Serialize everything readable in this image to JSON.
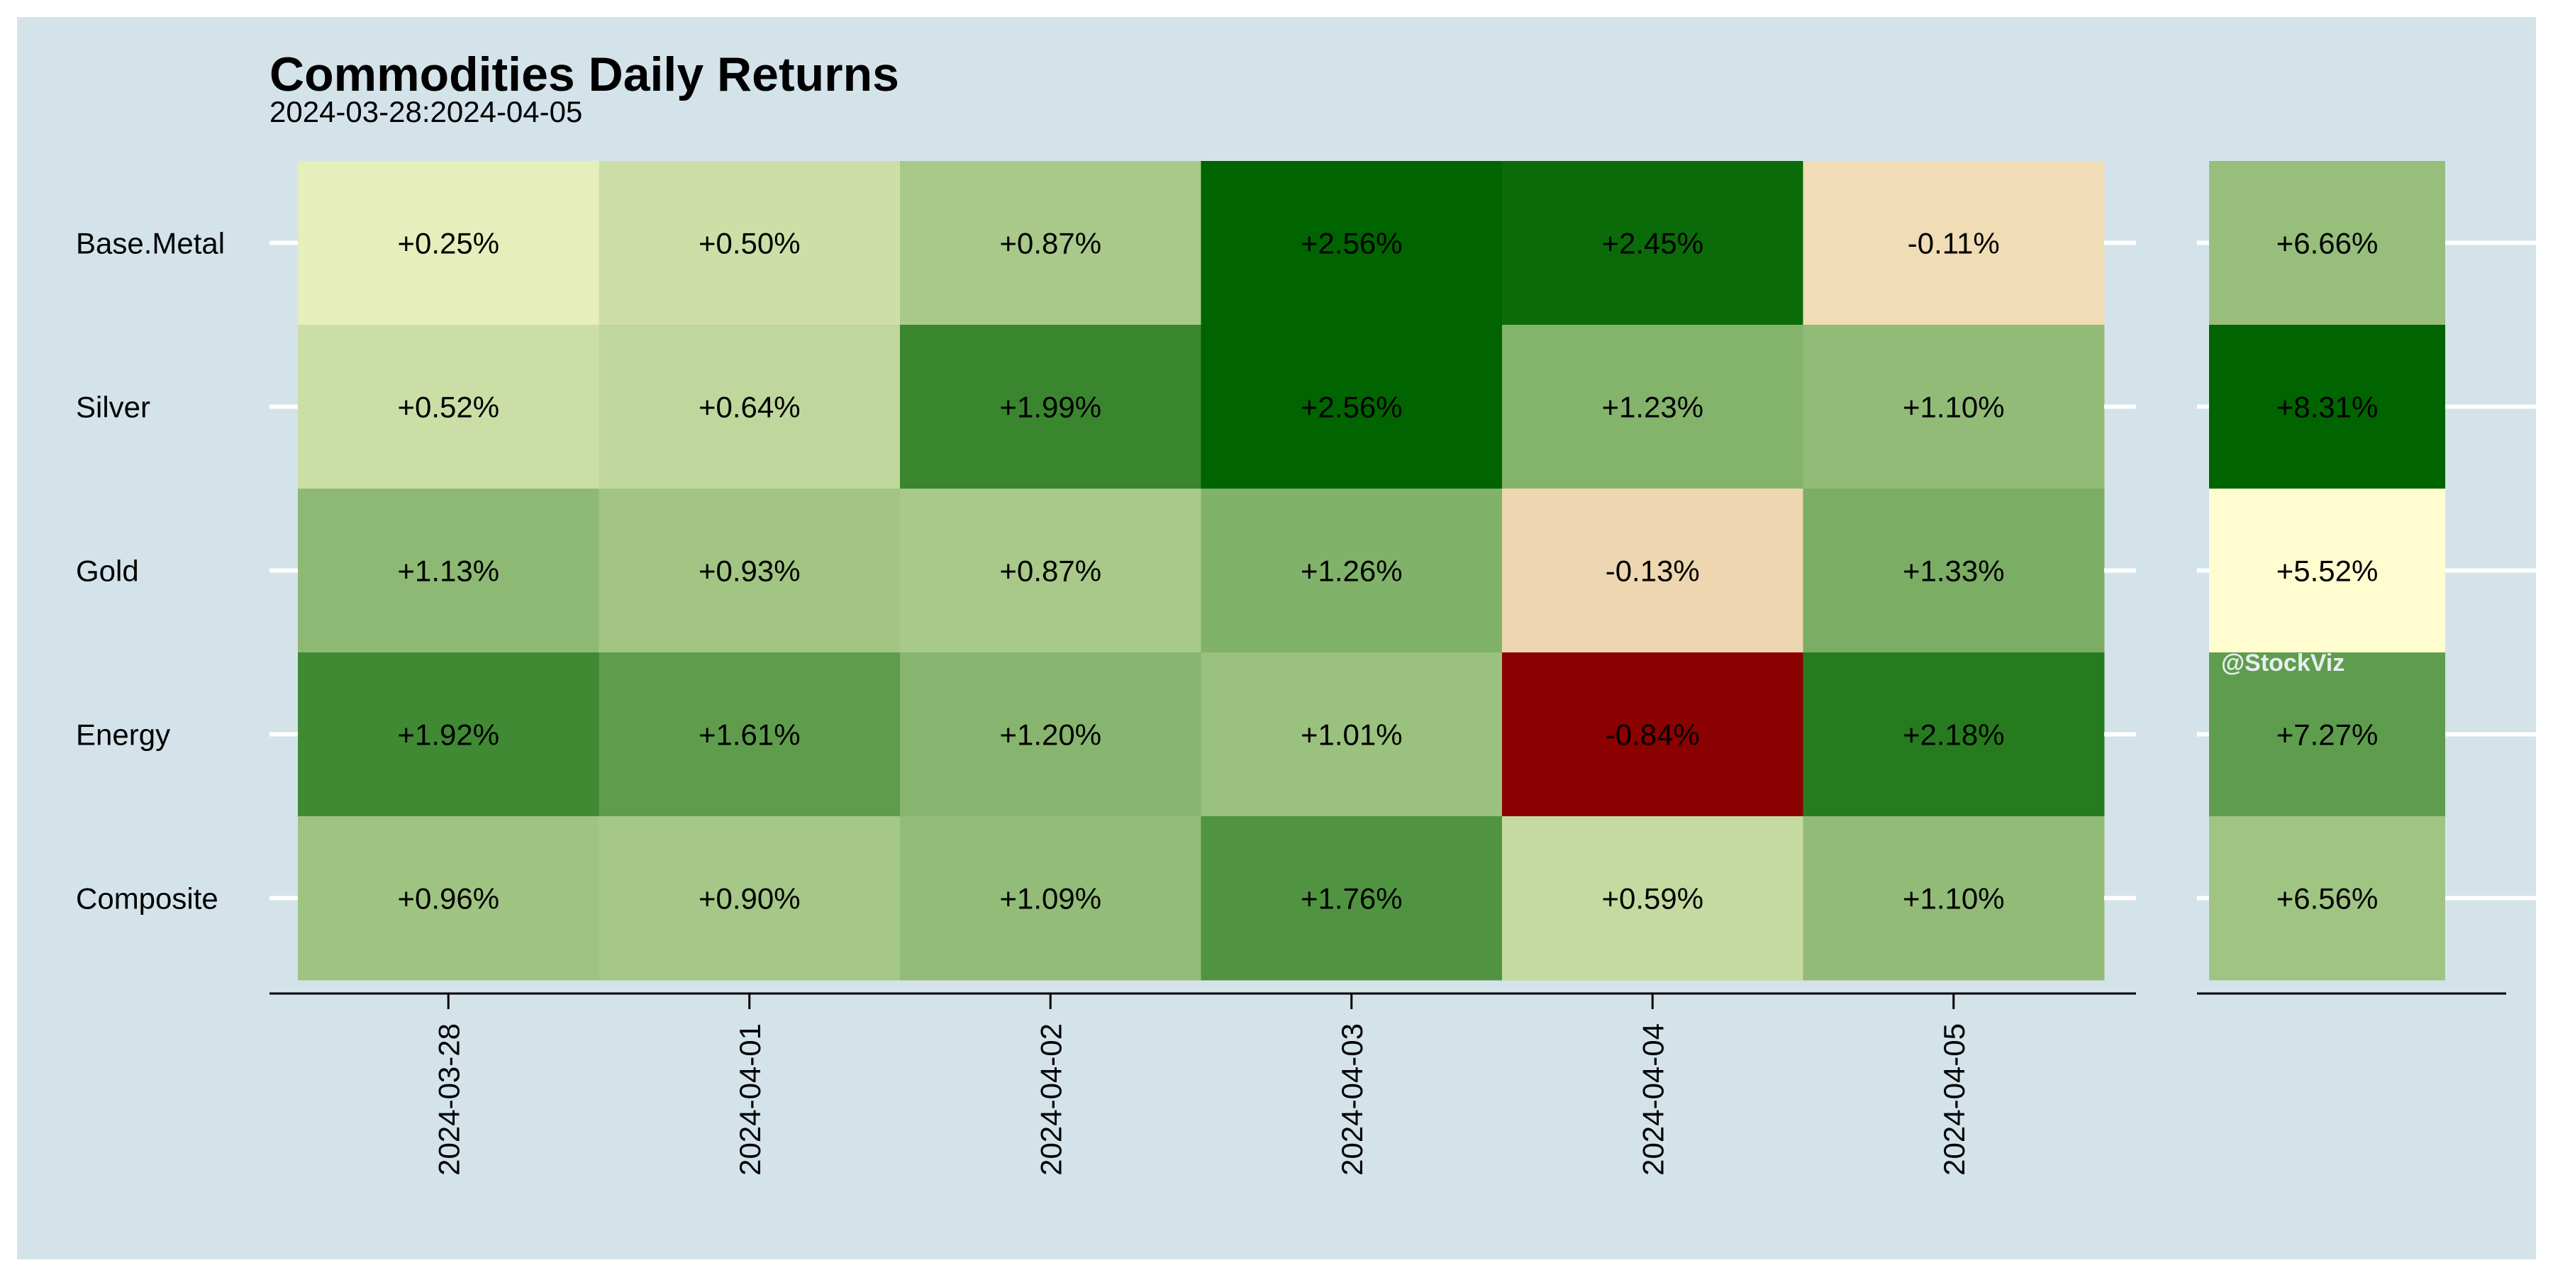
{
  "chart_data": {
    "type": "heatmap",
    "title": "Commodities Daily Returns",
    "subtitle": "2024-03-28:2024-04-05",
    "watermark": "@StockViz",
    "rows": [
      "Base.Metal",
      "Silver",
      "Gold",
      "Energy",
      "Composite"
    ],
    "columns": [
      "2024-03-28",
      "2024-04-01",
      "2024-04-02",
      "2024-04-03",
      "2024-04-04",
      "2024-04-05"
    ],
    "values": [
      [
        0.25,
        0.5,
        0.87,
        2.56,
        2.45,
        -0.11
      ],
      [
        0.52,
        0.64,
        1.99,
        2.56,
        1.23,
        1.1
      ],
      [
        1.13,
        0.93,
        0.87,
        1.26,
        -0.13,
        1.33
      ],
      [
        1.92,
        1.61,
        1.2,
        1.01,
        -0.84,
        2.18
      ],
      [
        0.96,
        0.9,
        1.09,
        1.76,
        0.59,
        1.1
      ]
    ],
    "labels": [
      [
        "+0.25%",
        "+0.50%",
        "+0.87%",
        "+2.56%",
        "+2.45%",
        "-0.11%"
      ],
      [
        "+0.52%",
        "+0.64%",
        "+1.99%",
        "+2.56%",
        "+1.23%",
        "+1.10%"
      ],
      [
        "+1.13%",
        "+0.93%",
        "+0.87%",
        "+1.26%",
        "-0.13%",
        "+1.33%"
      ],
      [
        "+1.92%",
        "+1.61%",
        "+1.20%",
        "+1.01%",
        "-0.84%",
        "+2.18%"
      ],
      [
        "+0.96%",
        "+0.90%",
        "+1.09%",
        "+1.76%",
        "+0.59%",
        "+1.10%"
      ]
    ],
    "totals": [
      6.66,
      8.31,
      5.52,
      7.27,
      6.56
    ],
    "total_labels": [
      "+6.66%",
      "+8.31%",
      "+5.52%",
      "+7.27%",
      "+6.56%"
    ],
    "colors": {
      "background": "#d4e3ea",
      "low": "#8b0000",
      "mid": "#fffdd0",
      "high": "#006400",
      "text": "#000000",
      "watermark": "#e8eef2"
    }
  }
}
